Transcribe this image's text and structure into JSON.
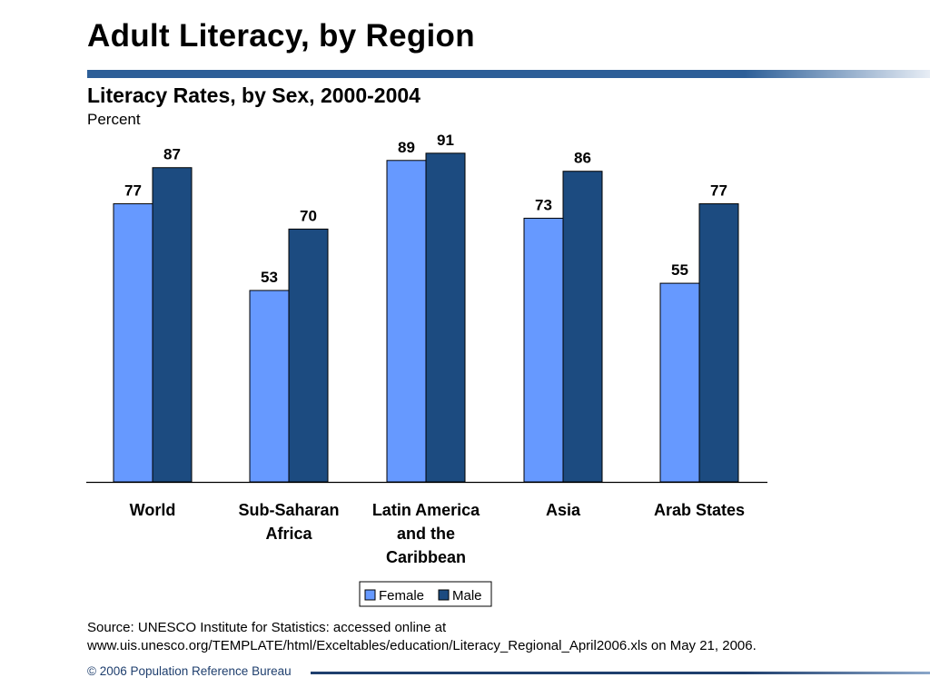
{
  "header": {
    "title": "Adult Literacy, by Region"
  },
  "chart_data": {
    "type": "bar",
    "title": "Literacy Rates, by Sex, 2000-2004",
    "subtitle": "Percent",
    "xlabel": "",
    "ylabel": "Percent",
    "ylim": [
      0,
      100
    ],
    "grid": false,
    "legend_position": "bottom-center",
    "categories": [
      [
        "World"
      ],
      [
        "Sub-Saharan",
        "Africa"
      ],
      [
        "Latin America",
        "and the",
        "Caribbean"
      ],
      [
        "Asia"
      ],
      [
        "Arab States"
      ]
    ],
    "series": [
      {
        "name": "Female",
        "color": "#6699ff",
        "values": [
          77,
          53,
          89,
          73,
          55
        ]
      },
      {
        "name": "Male",
        "color": "#1c4b80",
        "values": [
          87,
          70,
          91,
          86,
          77
        ]
      }
    ]
  },
  "source": {
    "line1": "Source: UNESCO Institute for Statistics: accessed online at",
    "line2": "www.uis.unesco.org/TEMPLATE/html/Exceltables/education/Literacy_Regional_April2006.xls on May 21, 2006."
  },
  "footer": {
    "text": "© 2006 Population Reference Bureau"
  }
}
